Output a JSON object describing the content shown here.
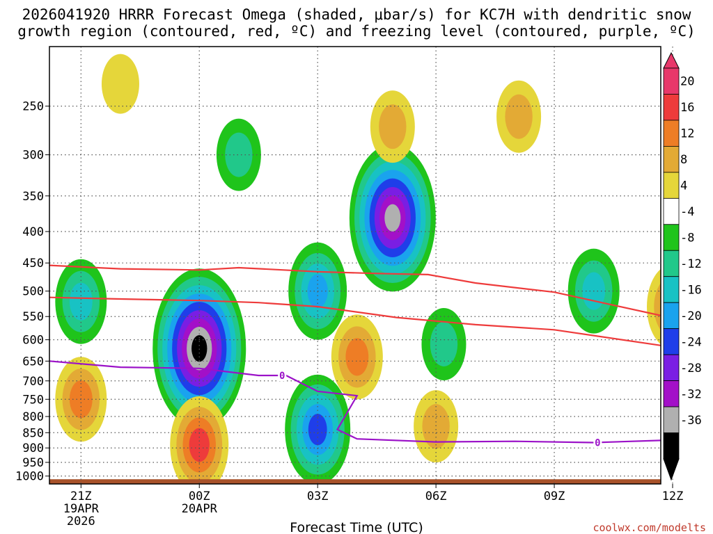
{
  "chart_data": {
    "type": "heatmap",
    "title_line1": "2026041920 HRRR Forecast Omega (shaded, μbar/s) for KC7H with dendritic snow",
    "title_line2": "growth region (contoured, red, ºC) and freezing level (contoured, purple, ºC)",
    "xlabel": "Forecast Time (UTC)",
    "credit": "coolwx.com/modelts",
    "x_range": [
      -0.8,
      14.7
    ],
    "y_range": [
      1030,
      200
    ],
    "y_ticks": [
      250,
      300,
      350,
      400,
      450,
      500,
      550,
      600,
      650,
      700,
      750,
      800,
      850,
      900,
      950,
      1000
    ],
    "y_tick_labels": [
      "250",
      "300",
      "350",
      "400",
      "450",
      "500",
      "550",
      "600",
      "650",
      "700",
      "750",
      "800",
      "850",
      "900",
      "950",
      "1000"
    ],
    "x_ticks": [
      {
        "h": 0,
        "l1": "21Z",
        "l2": "19APR",
        "l3": "2026"
      },
      {
        "h": 3,
        "l1": "00Z",
        "l2": "20APR",
        "l3": ""
      },
      {
        "h": 6,
        "l1": "03Z",
        "l2": "",
        "l3": ""
      },
      {
        "h": 9,
        "l1": "06Z",
        "l2": "",
        "l3": ""
      },
      {
        "h": 12,
        "l1": "09Z",
        "l2": "",
        "l3": ""
      },
      {
        "h": 15,
        "l1": "12Z",
        "l2": "",
        "l3": ""
      }
    ],
    "colorbar": {
      "labels": [
        "20",
        "16",
        "12",
        "8",
        "4",
        "-4",
        "-8",
        "-12",
        "-16",
        "-20",
        "-24",
        "-28",
        "-32",
        "-36"
      ],
      "colors": [
        "#e8386a",
        "#ee3b3b",
        "#ee7d25",
        "#e3aa35",
        "#e5d63a",
        "#ffffff",
        "#1fc41b",
        "#21c88a",
        "#18c2c4",
        "#1aa3ee",
        "#1f3ee9",
        "#7a1ee3",
        "#a310c8",
        "#b0b0b0",
        "#000000"
      ]
    },
    "omega_blobs": [
      {
        "t": 0.0,
        "p": 520,
        "levels": [
          -4,
          -8,
          -12
        ]
      },
      {
        "t": 1.0,
        "p": 230,
        "levels": [
          4
        ]
      },
      {
        "t": 3.0,
        "p": 620,
        "levels": [
          -4,
          -8,
          -12,
          -16,
          -20,
          -24,
          -28,
          -32,
          -36
        ]
      },
      {
        "t": 4.0,
        "p": 300,
        "levels": [
          -4,
          -8
        ]
      },
      {
        "t": 6.0,
        "p": 500,
        "levels": [
          -4,
          -8,
          -12,
          -16
        ]
      },
      {
        "t": 6.0,
        "p": 840,
        "levels": [
          -4,
          -8,
          -12,
          -16,
          -20
        ]
      },
      {
        "t": 7.9,
        "p": 380,
        "levels": [
          -4,
          -8,
          -12,
          -16,
          -20,
          -24,
          -28,
          -32
        ]
      },
      {
        "t": 7.0,
        "p": 640,
        "levels": [
          4,
          8,
          12
        ]
      },
      {
        "t": 3.0,
        "p": 890,
        "levels": [
          4,
          8,
          12,
          16
        ]
      },
      {
        "t": 0.0,
        "p": 750,
        "levels": [
          4,
          8,
          12
        ]
      },
      {
        "t": 9.2,
        "p": 610,
        "levels": [
          -4,
          -8
        ]
      },
      {
        "t": 13.0,
        "p": 500,
        "levels": [
          -4,
          -8,
          -12
        ]
      },
      {
        "t": 15.0,
        "p": 530,
        "levels": [
          4,
          8,
          12
        ]
      },
      {
        "t": 7.9,
        "p": 270,
        "levels": [
          4,
          8
        ]
      },
      {
        "t": 11.1,
        "p": 260,
        "levels": [
          4,
          8
        ]
      },
      {
        "t": 9.0,
        "p": 830,
        "levels": [
          4,
          8
        ]
      }
    ],
    "dendritic_contours": [
      {
        "name": "-12C",
        "points": [
          [
            -0.8,
            454
          ],
          [
            1,
            460
          ],
          [
            3,
            462
          ],
          [
            4,
            458
          ],
          [
            6,
            465
          ],
          [
            7.5,
            468
          ],
          [
            8.8,
            470
          ],
          [
            10,
            485
          ],
          [
            12,
            502
          ],
          [
            14.7,
            548
          ]
        ]
      },
      {
        "name": "-17C",
        "points": [
          [
            -0.8,
            512
          ],
          [
            1,
            515
          ],
          [
            3,
            518
          ],
          [
            4.5,
            522
          ],
          [
            6,
            530
          ],
          [
            8,
            552
          ],
          [
            10,
            567
          ],
          [
            12,
            578
          ],
          [
            14.7,
            613
          ]
        ]
      }
    ],
    "freezing_level": {
      "label": "0",
      "points": [
        [
          -0.8,
          650
        ],
        [
          1,
          665
        ],
        [
          3,
          668
        ],
        [
          4.5,
          686
        ],
        [
          5.2,
          686
        ],
        [
          6,
          728
        ],
        [
          7.0,
          740
        ],
        [
          6.5,
          840
        ],
        [
          7.0,
          870
        ],
        [
          9,
          880
        ],
        [
          11,
          878
        ],
        [
          13,
          882
        ],
        [
          14.7,
          875
        ]
      ],
      "label_at": [
        [
          5.1,
          686
        ],
        [
          13.1,
          882
        ]
      ]
    },
    "ground_p": 1012
  }
}
